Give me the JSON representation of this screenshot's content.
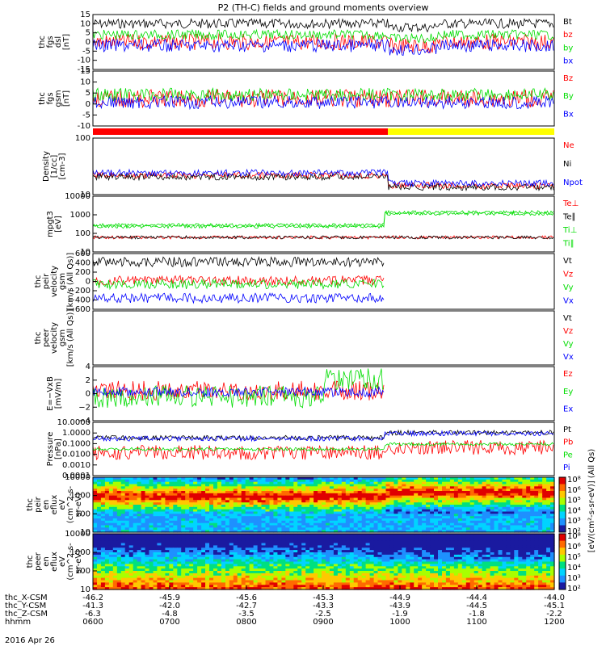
{
  "title": "P2 (TH-C) fields and ground moments overview",
  "date_label": "2016 Apr 26",
  "colors": {
    "black": "#000000",
    "red": "#ff0000",
    "green": "#00dd00",
    "blue": "#0000ff",
    "yellow": "#ffff00"
  },
  "chart_data": [
    {
      "type": "line",
      "id": "fgs_dsl",
      "ylabel_lines": [
        "thc",
        "fgs",
        "dsl",
        "[nT]"
      ],
      "yticks": [
        "15",
        "10",
        "5",
        "0",
        "-5",
        "-10",
        "-15"
      ],
      "ylim": [
        -15,
        15
      ],
      "series": [
        {
          "name": "Bt",
          "color": "black"
        },
        {
          "name": "bz",
          "color": "red"
        },
        {
          "name": "by",
          "color": "green"
        },
        {
          "name": "bx",
          "color": "blue"
        }
      ]
    },
    {
      "type": "line",
      "id": "fgs_gsm",
      "ylabel_lines": [
        "thc",
        "fgs",
        "gsm",
        "[nT]"
      ],
      "yticks": [
        "15",
        "10",
        "5",
        "0",
        "-5",
        "-10"
      ],
      "ylim": [
        -12,
        16
      ],
      "series": [
        {
          "name": "Bz",
          "color": "red"
        },
        {
          "name": "By",
          "color": "green"
        },
        {
          "name": "Bx",
          "color": "blue"
        }
      ]
    },
    {
      "type": "line",
      "id": "density",
      "ylabel_lines": [
        "Density",
        "[1/cc]",
        "[cm-3]"
      ],
      "yticks": [
        "100",
        "10"
      ],
      "ylim": [
        1,
        300
      ],
      "scale": "log",
      "series": [
        {
          "name": "Ne",
          "color": "red"
        },
        {
          "name": "Ni",
          "color": "black"
        },
        {
          "name": "Npot",
          "color": "blue"
        }
      ]
    },
    {
      "type": "line",
      "id": "temp",
      "ylabel_lines": [
        "mpgt3",
        "[eV]"
      ],
      "yticks": [
        "10000",
        "1000",
        "100",
        "10"
      ],
      "ylim": [
        3,
        10000
      ],
      "scale": "log",
      "series": [
        {
          "name": "Te⊥",
          "color": "red"
        },
        {
          "name": "Te∥",
          "color": "black"
        },
        {
          "name": "Ti⊥",
          "color": "green"
        },
        {
          "name": "Ti∥",
          "color": "green"
        }
      ]
    },
    {
      "type": "line",
      "id": "peir_vel",
      "ylabel_lines": [
        "thc",
        "peir",
        "velocity",
        "gsm",
        "[km/s (All Qs)]"
      ],
      "yticks": [
        "600",
        "400",
        "200",
        "0",
        "−200",
        "−400",
        "−600"
      ],
      "ylim": [
        -600,
        600
      ],
      "series": [
        {
          "name": "Vt",
          "color": "black"
        },
        {
          "name": "Vz",
          "color": "red"
        },
        {
          "name": "Vy",
          "color": "green"
        },
        {
          "name": "Vx",
          "color": "blue"
        }
      ]
    },
    {
      "type": "line",
      "id": "peer_vel",
      "ylabel_lines": [
        "thc",
        "peer",
        "velocity",
        "gsm",
        "[km/s (All Qs)]"
      ],
      "yticks": [],
      "ylim": [
        -600,
        600
      ],
      "series": [
        {
          "name": "Vt",
          "color": "black"
        },
        {
          "name": "Vz",
          "color": "red"
        },
        {
          "name": "Vy",
          "color": "green"
        },
        {
          "name": "Vx",
          "color": "blue"
        }
      ]
    },
    {
      "type": "line",
      "id": "efield",
      "ylabel_lines": [
        "E=−VxB",
        "[mV/m]"
      ],
      "yticks": [
        "4",
        "2",
        "0",
        "−2",
        "−4"
      ],
      "ylim": [
        -4.5,
        4.5
      ],
      "series": [
        {
          "name": "Ez",
          "color": "red"
        },
        {
          "name": "Ey",
          "color": "green"
        },
        {
          "name": "Ex",
          "color": "blue"
        }
      ]
    },
    {
      "type": "line",
      "id": "pressure",
      "ylabel_lines": [
        "Pressure",
        "[nPa]"
      ],
      "yticks": [
        "10.0000",
        "1.0000",
        "0.1000",
        "0.0100",
        "0.0010",
        "0.0001"
      ],
      "ylim": [
        0.0001,
        10
      ],
      "scale": "log",
      "series": [
        {
          "name": "Pt",
          "color": "black"
        },
        {
          "name": "Pb",
          "color": "red"
        },
        {
          "name": "Pe",
          "color": "green"
        },
        {
          "name": "Pi",
          "color": "blue"
        }
      ]
    },
    {
      "type": "heatmap",
      "id": "peir_spec",
      "ylabel_lines": [
        "thc",
        "peir",
        "en",
        "eflux",
        "eV",
        "(cm^2-s-",
        "sr-eV)"
      ],
      "yticks": [
        "10000",
        "1000",
        "100",
        "10"
      ]
    },
    {
      "type": "heatmap",
      "id": "peer_spec",
      "ylabel_lines": [
        "thc",
        "peer",
        "en",
        "eflux",
        "eV",
        "(cm^2-s-",
        "sr-eV)"
      ],
      "yticks": [
        "10000",
        "1000",
        "100",
        "10"
      ]
    }
  ],
  "colorbar": {
    "labels": [
      "10⁸",
      "10⁶",
      "10⁵",
      "10⁴",
      "10³",
      "10²"
    ],
    "unit": "[eV/(cm²-s-sr-eV)] (All Qs)"
  },
  "xaxis": {
    "rows": [
      {
        "label": "thc_X-CSM",
        "values": [
          "-46.2",
          "-45.9",
          "-45.6",
          "-45.3",
          "-44.9",
          "-44.4",
          "-44.0"
        ]
      },
      {
        "label": "thc_Y-CSM",
        "values": [
          "-41.3",
          "-42.0",
          "-42.7",
          "-43.3",
          "-43.9",
          "-44.5",
          "-45.1"
        ]
      },
      {
        "label": "thc_Z-CSM",
        "values": [
          "-6.3",
          "-4.8",
          "-3.5",
          "-2.5",
          "-1.9",
          "-1.8",
          "-2.2"
        ]
      },
      {
        "label": "hhmm",
        "values": [
          "0600",
          "0700",
          "0800",
          "0900",
          "1000",
          "1100",
          "1200"
        ]
      }
    ]
  }
}
